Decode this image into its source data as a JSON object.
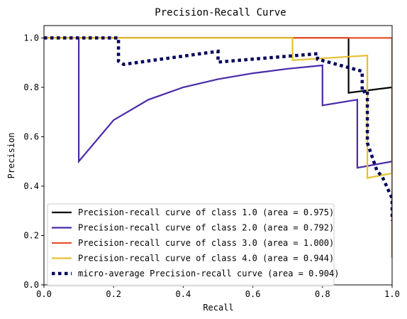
{
  "chart_data": {
    "type": "line",
    "title": "Precision-Recall Curve",
    "xlabel": "Recall",
    "ylabel": "Precision",
    "xlim": [
      0.0,
      1.0
    ],
    "ylim": [
      0.0,
      1.05
    ],
    "x_ticks": [
      "0.0",
      "0.2",
      "0.4",
      "0.6",
      "0.8",
      "1.0"
    ],
    "y_ticks": [
      "0.0",
      "0.2",
      "0.4",
      "0.6",
      "0.8",
      "1.0"
    ],
    "grid": false,
    "legend_position": "lower-left",
    "series": [
      {
        "name": "Precision-recall curve of class 1.0 (area = 0.975)",
        "color": "#000000",
        "style": "solid",
        "points": [
          [
            0.0,
            1.0
          ],
          [
            0.875,
            1.0
          ],
          [
            0.875,
            0.778
          ],
          [
            1.0,
            0.8
          ],
          [
            1.0,
            0.5
          ]
        ]
      },
      {
        "name": "Precision-recall curve of class 2.0 (area = 0.792)",
        "color": "#4b2aa8",
        "style": "solid",
        "points": [
          [
            0.0,
            1.0
          ],
          [
            0.1,
            1.0
          ],
          [
            0.1,
            0.5
          ],
          [
            0.2,
            0.667
          ],
          [
            0.3,
            0.75
          ],
          [
            0.4,
            0.8
          ],
          [
            0.5,
            0.833
          ],
          [
            0.6,
            0.857
          ],
          [
            0.7,
            0.875
          ],
          [
            0.8,
            0.889
          ],
          [
            0.8,
            0.727
          ],
          [
            0.9,
            0.75
          ],
          [
            0.9,
            0.474
          ],
          [
            1.0,
            0.5
          ]
        ]
      },
      {
        "name": "Precision-recall curve of class 3.0 (area = 1.000)",
        "color": "#e8502a",
        "style": "solid",
        "points": [
          [
            0.0,
            1.0
          ],
          [
            1.0,
            1.0
          ],
          [
            1.0,
            0.11
          ]
        ]
      },
      {
        "name": "Precision-recall curve of class 4.0 (area = 0.944)",
        "color": "#e6c032",
        "style": "solid",
        "points": [
          [
            0.0,
            1.0
          ],
          [
            0.714,
            1.0
          ],
          [
            0.714,
            0.91
          ],
          [
            0.929,
            0.929
          ],
          [
            0.929,
            0.433
          ],
          [
            1.0,
            0.452
          ],
          [
            1.0,
            0.38
          ]
        ]
      },
      {
        "name": "micro-average Precision-recall curve (area = 0.904)",
        "color": "#00005a",
        "style": "dotted",
        "points": [
          [
            0.0,
            1.0
          ],
          [
            0.214,
            1.0
          ],
          [
            0.214,
            0.906
          ],
          [
            0.229,
            0.893
          ],
          [
            0.5,
            0.946
          ],
          [
            0.5,
            0.902
          ],
          [
            0.786,
            0.936
          ],
          [
            0.786,
            0.914
          ],
          [
            0.914,
            0.865
          ],
          [
            0.914,
            0.78
          ],
          [
            0.929,
            0.788
          ],
          [
            0.929,
            0.575
          ],
          [
            0.957,
            0.46
          ],
          [
            0.971,
            0.44
          ],
          [
            1.0,
            0.35
          ],
          [
            1.0,
            0.26
          ]
        ]
      }
    ]
  }
}
